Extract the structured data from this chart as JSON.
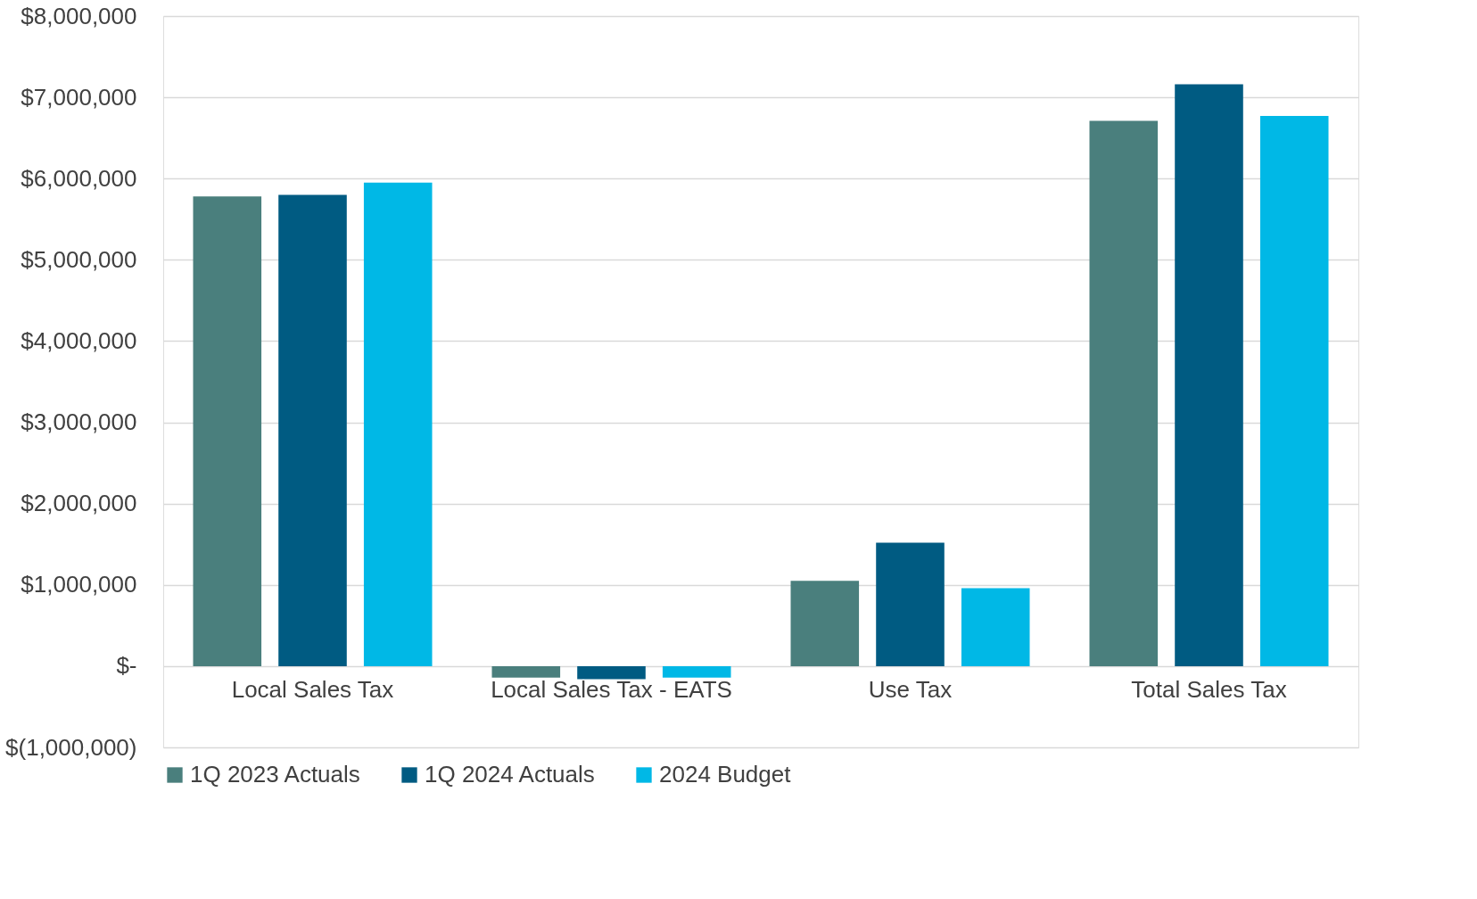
{
  "chart_data": {
    "type": "bar",
    "categories": [
      "Local Sales Tax",
      "Local Sales Tax - EATS",
      "Use Tax",
      "Total Sales Tax"
    ],
    "series": [
      {
        "name": "1Q 2023 Actuals",
        "color": "#4a7f7d",
        "values": [
          5780000,
          -140000,
          1050000,
          6710000
        ]
      },
      {
        "name": "1Q 2024 Actuals",
        "color": "#005b82",
        "values": [
          5800000,
          -160000,
          1520000,
          7160000
        ]
      },
      {
        "name": "2024 Budget",
        "color": "#00b8e6",
        "values": [
          5950000,
          -140000,
          960000,
          6770000
        ]
      }
    ],
    "ylim": [
      -1000000,
      8000000
    ],
    "yticks": [
      {
        "value": -1000000,
        "label": "$(1,000,000)"
      },
      {
        "value": 0,
        "label": "$-"
      },
      {
        "value": 1000000,
        "label": "$1,000,000"
      },
      {
        "value": 2000000,
        "label": "$2,000,000"
      },
      {
        "value": 3000000,
        "label": "$3,000,000"
      },
      {
        "value": 4000000,
        "label": "$4,000,000"
      },
      {
        "value": 5000000,
        "label": "$5,000,000"
      },
      {
        "value": 6000000,
        "label": "$6,000,000"
      },
      {
        "value": 7000000,
        "label": "$7,000,000"
      },
      {
        "value": 8000000,
        "label": "$8,000,000"
      }
    ],
    "grid": "y",
    "legend": "bottom"
  }
}
